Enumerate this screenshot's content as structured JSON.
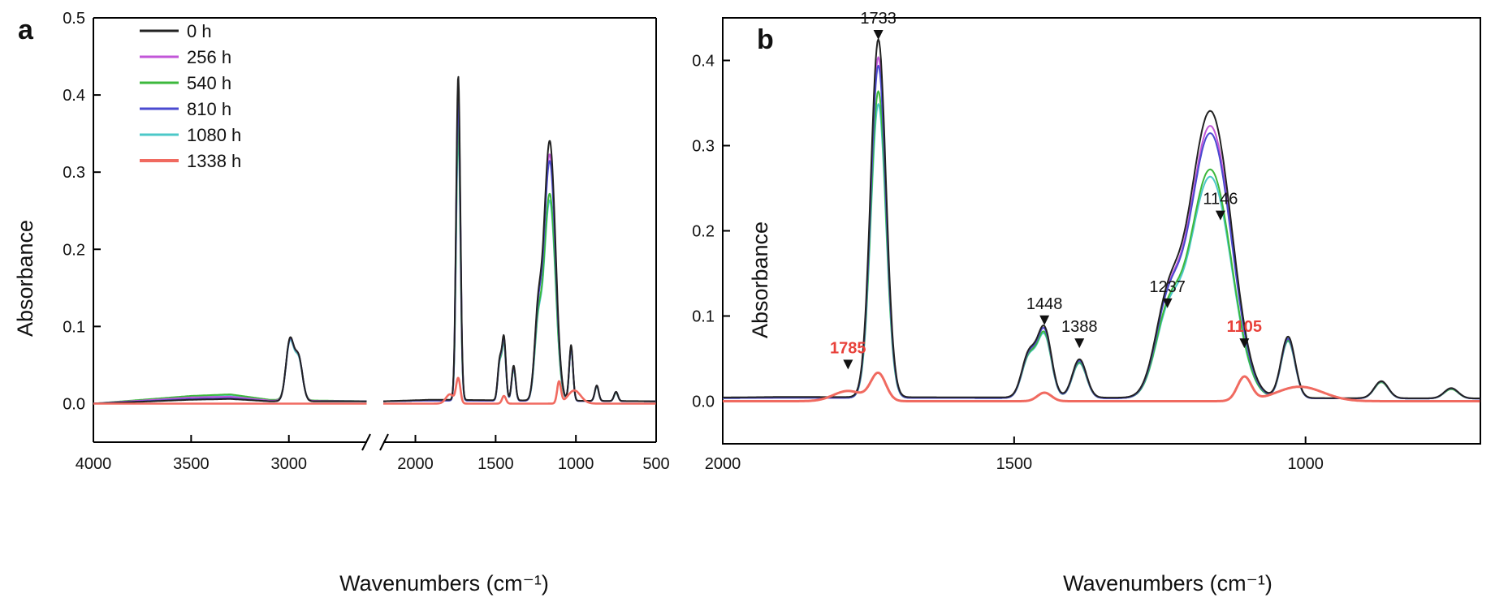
{
  "colors": {
    "0 h": "#222222",
    "256 h": "#c256d8",
    "540 h": "#3cb83c",
    "810 h": "#4a4ad0",
    "1080 h": "#4cc8c8",
    "1338 h": "#f06a60",
    "annotation_red": "#e8413a"
  },
  "chart_data": [
    {
      "panel_label": "a",
      "type": "line",
      "xlabel": "Wavenumbers (cm⁻¹)",
      "ylabel": "Absorbance",
      "x_reversed": true,
      "x_break": {
        "from": 2600,
        "to": 2200
      },
      "xlim": [
        4000,
        500
      ],
      "ylim": [
        -0.05,
        0.5
      ],
      "xticks": [
        4000,
        3500,
        3000,
        2000,
        1500,
        1000,
        500
      ],
      "yticks": [
        0.0,
        0.1,
        0.2,
        0.3,
        0.4,
        0.5
      ],
      "legend": {
        "position": "top-left",
        "entries": [
          "0 h",
          "256 h",
          "540 h",
          "810 h",
          "1080 h",
          "1338 h"
        ]
      },
      "series": [
        {
          "name": "0 h",
          "peaks": [
            [
              2995,
              0.078
            ],
            [
              2950,
              0.055
            ],
            [
              1733,
              0.42
            ],
            [
              1475,
              0.05
            ],
            [
              1448,
              0.08
            ],
            [
              1388,
              0.045
            ],
            [
              1237,
              0.1
            ],
            [
              1180,
              0.2
            ],
            [
              1146,
              0.195
            ],
            [
              1030,
              0.072
            ],
            [
              870,
              0.02
            ],
            [
              750,
              0.012
            ]
          ],
          "baseline": [
            [
              4000,
              0.0
            ],
            [
              3500,
              0.005
            ],
            [
              3300,
              0.006
            ],
            [
              3100,
              0.003
            ],
            [
              2600,
              0.003
            ],
            [
              2200,
              0.003
            ],
            [
              1900,
              0.005
            ],
            [
              500,
              0.003
            ]
          ]
        },
        {
          "name": "256 h",
          "peaks": [
            [
              2995,
              0.076
            ],
            [
              2950,
              0.054
            ],
            [
              1733,
              0.4
            ],
            [
              1475,
              0.049
            ],
            [
              1448,
              0.078
            ],
            [
              1388,
              0.044
            ],
            [
              1237,
              0.097
            ],
            [
              1180,
              0.19
            ],
            [
              1146,
              0.185
            ],
            [
              1030,
              0.07
            ],
            [
              870,
              0.02
            ],
            [
              750,
              0.012
            ]
          ],
          "baseline": [
            [
              4000,
              0.0
            ],
            [
              3500,
              0.008
            ],
            [
              3300,
              0.009
            ],
            [
              3100,
              0.004
            ],
            [
              2600,
              0.003
            ],
            [
              2200,
              0.003
            ],
            [
              1900,
              0.004
            ],
            [
              500,
              0.003
            ]
          ]
        },
        {
          "name": "540 h",
          "peaks": [
            [
              2995,
              0.075
            ],
            [
              2950,
              0.053
            ],
            [
              1733,
              0.36
            ],
            [
              1475,
              0.047
            ],
            [
              1448,
              0.074
            ],
            [
              1388,
              0.042
            ],
            [
              1237,
              0.088
            ],
            [
              1180,
              0.16
            ],
            [
              1146,
              0.155
            ],
            [
              1030,
              0.068
            ],
            [
              870,
              0.019
            ],
            [
              750,
              0.011
            ]
          ],
          "baseline": [
            [
              4000,
              0.0
            ],
            [
              3500,
              0.01
            ],
            [
              3300,
              0.012
            ],
            [
              3100,
              0.005
            ],
            [
              2600,
              0.003
            ],
            [
              2200,
              0.003
            ],
            [
              1900,
              0.004
            ],
            [
              500,
              0.003
            ]
          ]
        },
        {
          "name": "810 h",
          "peaks": [
            [
              2995,
              0.077
            ],
            [
              2950,
              0.055
            ],
            [
              1733,
              0.39
            ],
            [
              1475,
              0.049
            ],
            [
              1448,
              0.078
            ],
            [
              1388,
              0.044
            ],
            [
              1237,
              0.096
            ],
            [
              1180,
              0.185
            ],
            [
              1146,
              0.18
            ],
            [
              1030,
              0.07
            ],
            [
              870,
              0.02
            ],
            [
              750,
              0.012
            ]
          ],
          "baseline": [
            [
              4000,
              0.0
            ],
            [
              3500,
              0.006
            ],
            [
              3300,
              0.007
            ],
            [
              3100,
              0.003
            ],
            [
              2600,
              0.003
            ],
            [
              2200,
              0.003
            ],
            [
              1900,
              0.004
            ],
            [
              500,
              0.003
            ]
          ]
        },
        {
          "name": "1080 h",
          "peaks": [
            [
              2995,
              0.074
            ],
            [
              2950,
              0.052
            ],
            [
              1733,
              0.345
            ],
            [
              1475,
              0.046
            ],
            [
              1448,
              0.072
            ],
            [
              1388,
              0.041
            ],
            [
              1237,
              0.085
            ],
            [
              1180,
              0.155
            ],
            [
              1146,
              0.15
            ],
            [
              1030,
              0.067
            ],
            [
              870,
              0.019
            ],
            [
              750,
              0.011
            ]
          ],
          "baseline": [
            [
              4000,
              0.0
            ],
            [
              3500,
              0.009
            ],
            [
              3300,
              0.01
            ],
            [
              3100,
              0.004
            ],
            [
              2600,
              0.003
            ],
            [
              2200,
              0.003
            ],
            [
              1900,
              0.004
            ],
            [
              500,
              0.003
            ]
          ]
        },
        {
          "name": "1338 h",
          "peaks": [
            [
              1785,
              0.012
            ],
            [
              1733,
              0.032
            ],
            [
              1448,
              0.01
            ],
            [
              1105,
              0.028
            ],
            [
              1010,
              0.017
            ]
          ],
          "baseline": [
            [
              4000,
              0.0
            ],
            [
              3000,
              0.0
            ],
            [
              2600,
              0.0
            ],
            [
              2200,
              0.0
            ],
            [
              1900,
              0.0
            ],
            [
              500,
              0.0
            ]
          ]
        }
      ]
    },
    {
      "panel_label": "b",
      "type": "line",
      "xlabel": "Wavenumbers (cm⁻¹)",
      "ylabel": "Absorbance",
      "x_reversed": true,
      "xlim": [
        2000,
        700
      ],
      "ylim": [
        -0.05,
        0.45
      ],
      "xticks": [
        2000,
        1500,
        1000
      ],
      "yticks": [
        0.0,
        0.1,
        0.2,
        0.3,
        0.4
      ],
      "annotations": [
        {
          "text": "1733",
          "x": 1733,
          "y": 0.43,
          "color": "#111111"
        },
        {
          "text": "1448",
          "x": 1448,
          "y": 0.095,
          "color": "#111111"
        },
        {
          "text": "1388",
          "x": 1388,
          "y": 0.068,
          "color": "#111111"
        },
        {
          "text": "1237",
          "x": 1237,
          "y": 0.115,
          "color": "#111111"
        },
        {
          "text": "1146",
          "x": 1146,
          "y": 0.218,
          "color": "#111111"
        },
        {
          "text": "1785",
          "x": 1785,
          "y": 0.043,
          "color": "#e8413a"
        },
        {
          "text": "1105",
          "x": 1105,
          "y": 0.068,
          "color": "#e8413a"
        }
      ]
    }
  ]
}
